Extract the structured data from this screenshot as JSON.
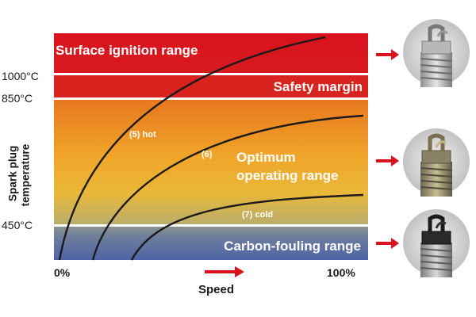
{
  "bands": {
    "surface": "Surface ignition range",
    "safety": "Safety margin",
    "optimum_line1": "Optimum",
    "optimum_line2": "operating range",
    "carbon": "Carbon-fouling range"
  },
  "y_axis": {
    "label_line1": "Spark plug",
    "label_line2": "temperature",
    "ticks": [
      "1000°C",
      "850°C",
      "450°C"
    ]
  },
  "x_axis": {
    "label": "Speed",
    "start": "0%",
    "end": "100%"
  },
  "curves": [
    {
      "name": "(5) hot"
    },
    {
      "name": "(6)"
    },
    {
      "name": "(7) cold"
    }
  ],
  "plugs": [
    {
      "icon": "spark-plug-icon",
      "state": "overheated"
    },
    {
      "icon": "spark-plug-icon",
      "state": "normal"
    },
    {
      "icon": "spark-plug-icon",
      "state": "carbon-fouled"
    }
  ],
  "colors": {
    "surface_band": "#d9121e",
    "safety_band": "#d8231f",
    "optimum_top": "#e8771e",
    "optimum_bottom": "#f2bf33",
    "carbon_band": "#5769a7",
    "arrow": "#d9121e"
  }
}
